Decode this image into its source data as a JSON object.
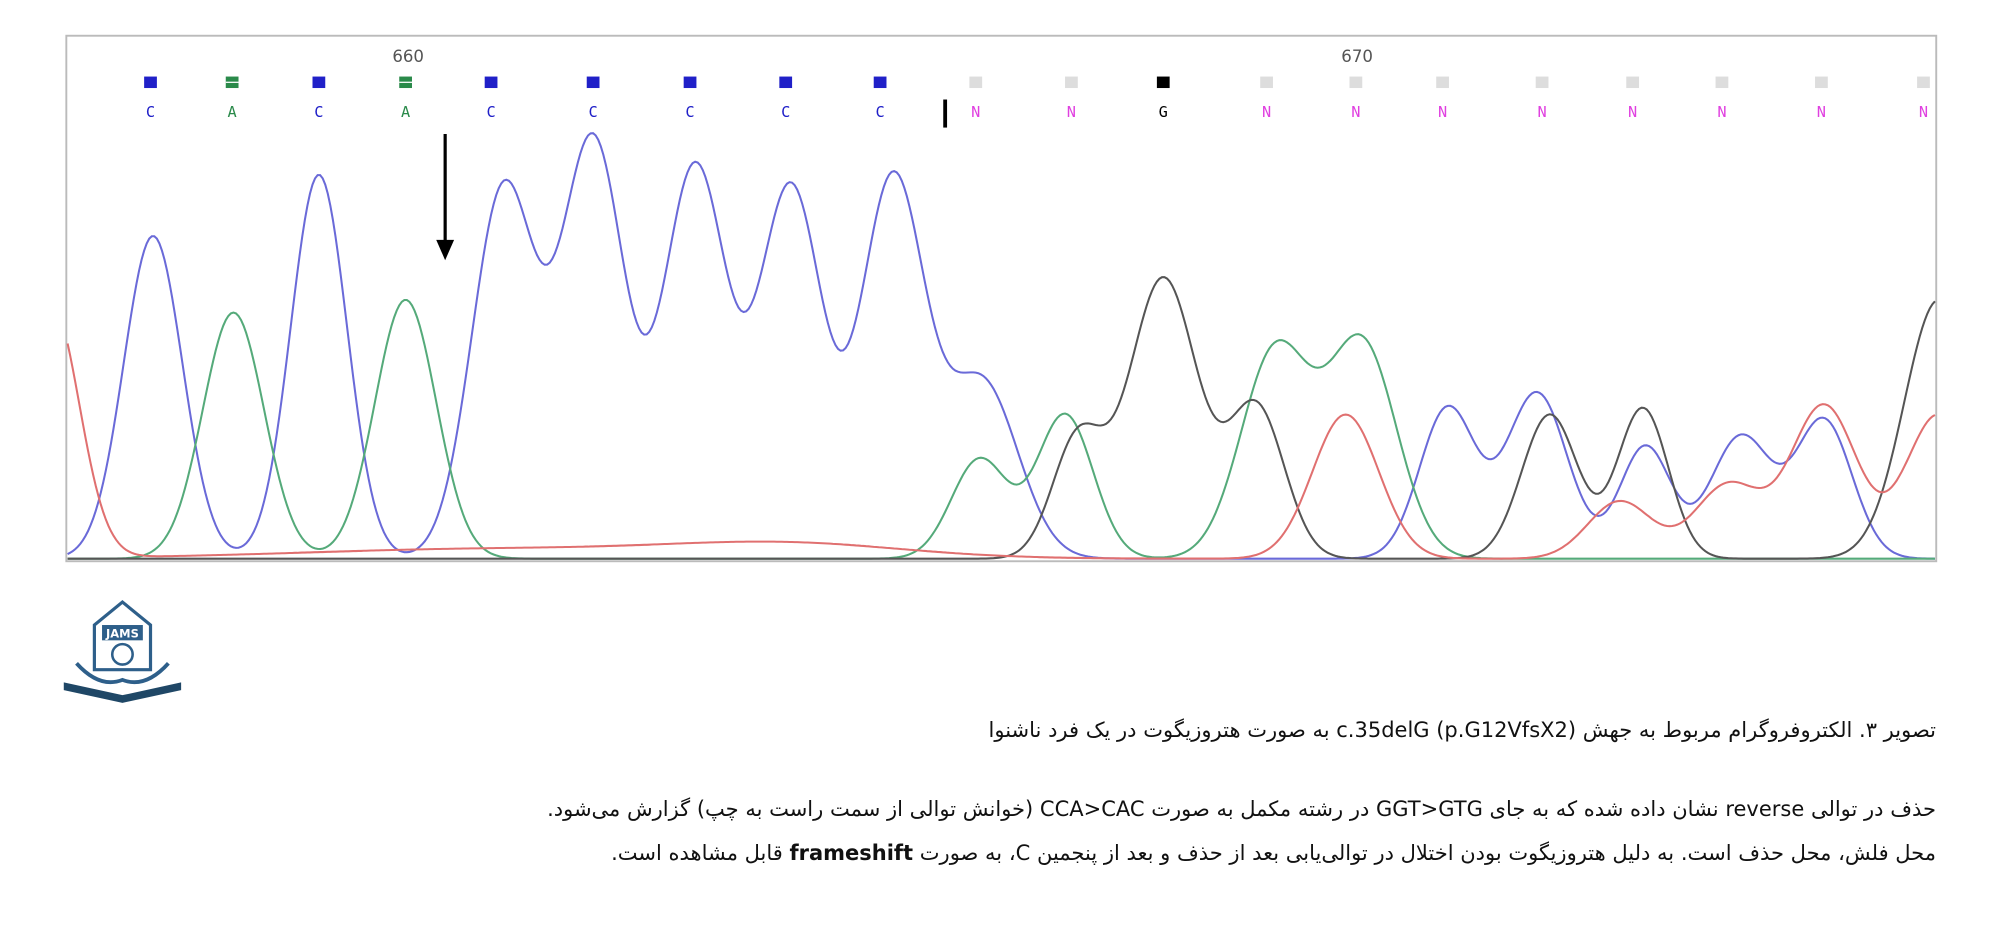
{
  "chromatogram": {
    "positions": [
      "660",
      "670"
    ],
    "bases": [
      "C",
      "A",
      "C",
      "A",
      "C",
      "C",
      "C",
      "C",
      "C",
      "N",
      "N",
      "G",
      "N",
      "N",
      "N",
      "N",
      "N",
      "N",
      "N",
      "N"
    ]
  },
  "logo": {
    "text": "JAMS"
  },
  "caption": "تصویر ۳. الکتروفروگرام مربوط به جهش c.35delG (p.G12VfsX2) به صورت هتروزیگوت در یک فرد ناشنوا",
  "paragraph": {
    "line1": "حذف در توالی reverse نشان داده شده که به جای GGT>GTG در رشته مکمل به صورت CCA>CAC (خوانش توالی از سمت راست به چپ) گزارش می‌شود.",
    "line2": [
      "محل فلش، محل حذف است. به دلیل هتروزیگوت بودن اختلال در توالی‌یابی بعد از حذف و بعد از پنجمین C، به صورت ",
      "frameshift",
      " قابل مشاهده است."
    ]
  }
}
